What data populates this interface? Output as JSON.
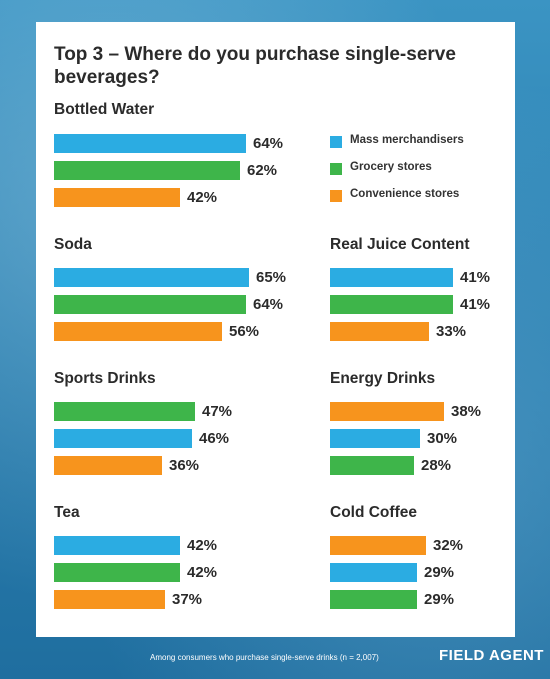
{
  "title": "Top 3 – Where do you purchase single-serve beverages?",
  "colors": {
    "mass_merchandisers": "#2bace2",
    "grocery_stores": "#3eb54a",
    "convenience_stores": "#f7941d"
  },
  "legend": [
    {
      "label": "Mass merchandisers",
      "color_key": "mass_merchandisers"
    },
    {
      "label": "Grocery stores",
      "color_key": "grocery_stores"
    },
    {
      "label": "Convenience stores",
      "color_key": "convenience_stores"
    }
  ],
  "footer": {
    "note": "Among consumers who purchase single-serve drinks (n = 2,007)",
    "brand": "FIELD AGENT"
  },
  "chart_data": {
    "type": "bar",
    "title": "Top 3 – Where do you purchase single-serve beverages?",
    "unit": "%",
    "series_names": [
      "Mass merchandisers",
      "Grocery stores",
      "Convenience stores"
    ],
    "groups": [
      {
        "name": "Bottled Water",
        "bars": [
          {
            "series": "Mass merchandisers",
            "value": 64,
            "label": "64%"
          },
          {
            "series": "Grocery stores",
            "value": 62,
            "label": "62%"
          },
          {
            "series": "Convenience stores",
            "value": 42,
            "label": "42%"
          }
        ]
      },
      {
        "name": "Soda",
        "bars": [
          {
            "series": "Mass merchandisers",
            "value": 65,
            "label": "65%"
          },
          {
            "series": "Grocery stores",
            "value": 64,
            "label": "64%"
          },
          {
            "series": "Convenience stores",
            "value": 56,
            "label": "56%"
          }
        ]
      },
      {
        "name": "Real Juice Content",
        "bars": [
          {
            "series": "Mass merchandisers",
            "value": 41,
            "label": "41%"
          },
          {
            "series": "Grocery stores",
            "value": 41,
            "label": "41%"
          },
          {
            "series": "Convenience stores",
            "value": 33,
            "label": "33%"
          }
        ]
      },
      {
        "name": "Sports Drinks",
        "bars": [
          {
            "series": "Grocery stores",
            "value": 47,
            "label": "47%"
          },
          {
            "series": "Mass merchandisers",
            "value": 46,
            "label": "46%"
          },
          {
            "series": "Convenience stores",
            "value": 36,
            "label": "36%"
          }
        ]
      },
      {
        "name": "Energy Drinks",
        "bars": [
          {
            "series": "Convenience stores",
            "value": 38,
            "label": "38%"
          },
          {
            "series": "Mass merchandisers",
            "value": 30,
            "label": "30%"
          },
          {
            "series": "Grocery stores",
            "value": 28,
            "label": "28%"
          }
        ]
      },
      {
        "name": "Tea",
        "bars": [
          {
            "series": "Mass merchandisers",
            "value": 42,
            "label": "42%"
          },
          {
            "series": "Grocery stores",
            "value": 42,
            "label": "42%"
          },
          {
            "series": "Convenience stores",
            "value": 37,
            "label": "37%"
          }
        ]
      },
      {
        "name": "Cold Coffee",
        "bars": [
          {
            "series": "Convenience stores",
            "value": 32,
            "label": "32%"
          },
          {
            "series": "Mass merchandisers",
            "value": 29,
            "label": "29%"
          },
          {
            "series": "Grocery stores",
            "value": 29,
            "label": "29%"
          }
        ]
      }
    ]
  }
}
